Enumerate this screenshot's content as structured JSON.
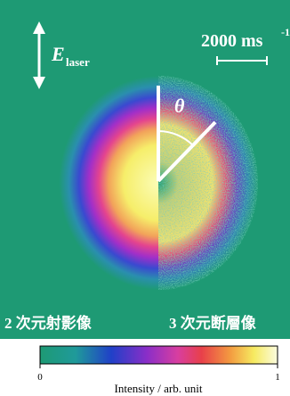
{
  "image": {
    "polarization_symbol": "E",
    "polarization_subscript": "laser",
    "scale_bar_text": "2000 ms",
    "scale_bar_superscript": "-1",
    "angle_symbol": "θ",
    "left_caption": "2 次元射影像",
    "right_caption": "3 次元断層像"
  },
  "colorbar": {
    "ticks": [
      0,
      1
    ],
    "label": "Intensity / arb. unit"
  }
}
